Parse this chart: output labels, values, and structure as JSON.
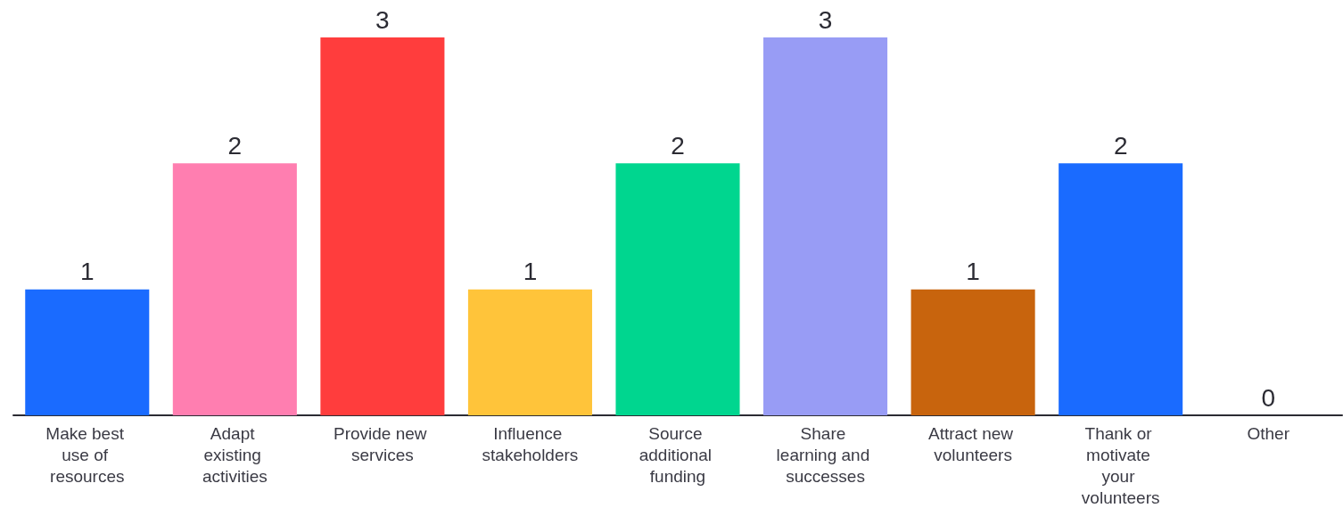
{
  "chart_data": {
    "type": "bar",
    "categories": [
      "Make best use of resources",
      "Adapt existing activities",
      "Provide new services",
      "Influence stakeholders",
      "Source additional funding",
      "Share learning and successes",
      "Attract new volunteers",
      "Thank or motivate your volunteers",
      "Other"
    ],
    "values": [
      1,
      2,
      3,
      1,
      2,
      3,
      1,
      2,
      0
    ],
    "colors": [
      "#1a6bff",
      "#ff7eb0",
      "#ff3d3d",
      "#ffc43a",
      "#00d68f",
      "#989cf5",
      "#c8640d",
      "#1a6bff",
      "#1a6bff"
    ],
    "data_labels": true
  }
}
